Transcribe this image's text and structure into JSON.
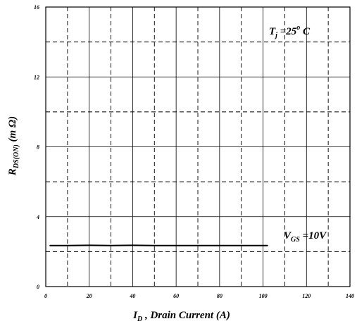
{
  "chart_data": {
    "type": "line",
    "xlabel": {
      "main": "I",
      "sub": "D",
      "rest": " , Drain Current (A)"
    },
    "ylabel": {
      "main": "R",
      "sub": "DS(ON)",
      "rest": " (m Ω)"
    },
    "xlim": [
      0,
      140
    ],
    "ylim": [
      0,
      16
    ],
    "x_ticks": [
      "0",
      "20",
      "40",
      "60",
      "80",
      "100",
      "120",
      "140"
    ],
    "y_ticks": [
      "0",
      "4",
      "8",
      "12",
      "16"
    ],
    "grid": true,
    "series": [
      {
        "x": [
          2,
          10,
          20,
          30,
          40,
          50,
          60,
          70,
          80,
          90,
          102
        ],
        "y": [
          2.35,
          2.35,
          2.36,
          2.35,
          2.36,
          2.35,
          2.35,
          2.35,
          2.35,
          2.35,
          2.35
        ]
      }
    ],
    "annotations": {
      "tj": {
        "main": "T",
        "sub": "j",
        "mid": " =25",
        "sup": "o",
        "rest": " C"
      },
      "vgs": {
        "main": "V",
        "sub": "GS",
        "rest": " =10V"
      }
    }
  }
}
